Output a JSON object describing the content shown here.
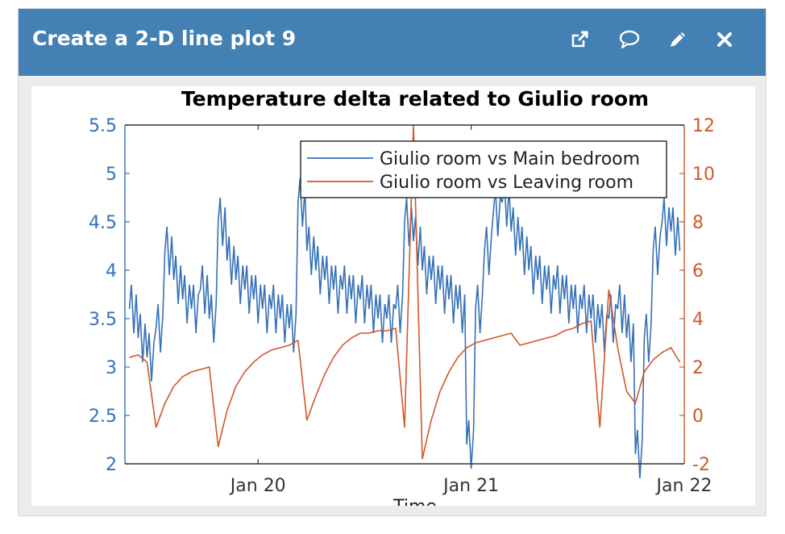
{
  "panel": {
    "title": "Create a 2-D line plot 9",
    "icons": [
      "open-external-icon",
      "comment-icon",
      "edit-pencil-icon",
      "close-icon"
    ]
  },
  "chart_data": {
    "type": "line",
    "title": "Temperature delta related to Giulio room",
    "xlabel": "Time",
    "x_ticks": [
      "Jan 20",
      "Jan 21",
      "Jan 22"
    ],
    "xlim": [
      "2020-01-19 09:00",
      "2020-01-22 00:00"
    ],
    "y_left": {
      "lim": [
        2,
        5.5
      ],
      "ticks": [
        "2",
        "2.5",
        "3",
        "3.5",
        "4",
        "4.5",
        "5",
        "5.5"
      ],
      "color": "#3571b8"
    },
    "y_right": {
      "lim": [
        -2,
        12
      ],
      "ticks": [
        "-2",
        "0",
        "2",
        "4",
        "6",
        "8",
        "10",
        "12"
      ],
      "color": "#d0572b"
    },
    "legend_position": "top-right",
    "series": [
      {
        "name": "Giulio room vs Main bedroom",
        "axis": "left",
        "color": "#3571b8",
        "x_hours": [
          0,
          1,
          2,
          3,
          4,
          5,
          6,
          7,
          8,
          9,
          10,
          11,
          12,
          13,
          14,
          15,
          16,
          17,
          18,
          19,
          20,
          21,
          22,
          23,
          24,
          25,
          26,
          27,
          28,
          29,
          30,
          31,
          32,
          33,
          34,
          35,
          36,
          37,
          38,
          39,
          40,
          41,
          42,
          43,
          44,
          45,
          46,
          47,
          48,
          49,
          50,
          51,
          52,
          53,
          54,
          55,
          56,
          57,
          58,
          59,
          60,
          61,
          62
        ],
        "values": [
          3.6,
          3.3,
          3.1,
          3.4,
          4.2,
          3.9,
          3.7,
          3.6,
          3.8,
          3.5,
          4.5,
          4.1,
          3.9,
          3.8,
          3.7,
          3.6,
          3.6,
          3.5,
          3.4,
          4.7,
          4.2,
          4.0,
          3.9,
          3.8,
          3.8,
          3.7,
          3.7,
          3.6,
          3.5,
          3.5,
          3.6,
          4.5,
          4.3,
          4.0,
          3.9,
          3.8,
          3.7,
          3.6,
          2.2,
          3.6,
          4.2,
          4.6,
          4.7,
          4.4,
          4.2,
          4.0,
          3.9,
          3.8,
          3.8,
          3.7,
          3.6,
          3.6,
          3.5,
          3.4,
          3.5,
          3.6,
          3.3,
          2.1,
          3.3,
          4.2,
          4.5,
          4.4,
          4.2
        ]
      },
      {
        "name": "Giulio room vs Leaving room",
        "axis": "right",
        "color": "#d0572b",
        "x_hours": [
          0,
          1,
          2,
          3,
          4,
          5,
          6,
          7,
          8,
          9,
          10,
          11,
          12,
          13,
          14,
          15,
          16,
          17,
          18,
          19,
          20,
          21,
          22,
          23,
          24,
          25,
          26,
          27,
          28,
          29,
          30,
          31,
          32,
          33,
          34,
          35,
          36,
          37,
          38,
          39,
          40,
          41,
          42,
          43,
          44,
          45,
          46,
          47,
          48,
          49,
          50,
          51,
          52,
          53,
          54,
          55,
          56,
          57,
          58,
          59,
          60,
          61,
          62
        ],
        "values": [
          2.4,
          2.5,
          2.2,
          -0.5,
          0.5,
          1.2,
          1.6,
          1.8,
          1.9,
          2.0,
          -1.3,
          0.2,
          1.2,
          1.8,
          2.2,
          2.5,
          2.7,
          2.8,
          2.9,
          3.1,
          -0.2,
          0.8,
          1.7,
          2.4,
          2.9,
          3.2,
          3.4,
          3.4,
          3.5,
          3.5,
          3.6,
          -0.5,
          12.0,
          -1.8,
          -0.2,
          1.0,
          1.8,
          2.4,
          2.8,
          3.0,
          3.1,
          3.2,
          3.3,
          3.4,
          2.9,
          3.0,
          3.1,
          3.2,
          3.3,
          3.5,
          3.6,
          3.8,
          3.9,
          -0.5,
          5.2,
          2.8,
          1.0,
          0.5,
          1.8,
          2.3,
          2.6,
          2.8,
          2.2
        ]
      }
    ]
  }
}
